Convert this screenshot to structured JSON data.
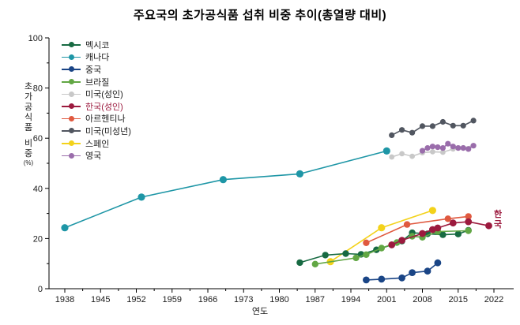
{
  "title": "주요국의 초가공식품 섭취 비중 추이(총열량 대비)",
  "annotation": {
    "text": "한\n국",
    "color": "#9c1a3e"
  },
  "chart_data": {
    "type": "line",
    "title": "주요국의 초가공식품 섭취 비중 추이(총열량 대비)",
    "xlabel": "연도",
    "ylabel": "초가공식품 비중",
    "ylabel_unit": "(%)",
    "xlim": [
      1934.5,
      2026
    ],
    "ylim": [
      0,
      100
    ],
    "x_ticks": [
      1938,
      1945,
      1952,
      1959,
      1966,
      1973,
      1980,
      1987,
      1994,
      2001,
      2008,
      2015,
      2022
    ],
    "y_ticks": [
      0,
      20,
      40,
      60,
      80,
      100
    ],
    "grid": false,
    "legend_position": "upper-left-inside",
    "series": [
      {
        "id": "mexico",
        "name": "멕시코",
        "color": "#176a42",
        "label_color": "#1a1a1a",
        "marker_radius": 4.2,
        "points": [
          [
            1984,
            10.4
          ],
          [
            1989,
            13.4
          ],
          [
            1993,
            14.0
          ],
          [
            1996,
            13.7
          ],
          [
            1999,
            15.5
          ],
          [
            2002,
            17.5
          ],
          [
            2004,
            19.0
          ],
          [
            2006,
            22.3
          ],
          [
            2009,
            21.9
          ],
          [
            2012,
            21.5
          ],
          [
            2015,
            21.8
          ],
          [
            2017,
            23.3
          ]
        ]
      },
      {
        "id": "canada",
        "name": "캐나다",
        "color": "#1e96a6",
        "label_color": "#1a1a1a",
        "marker_radius": 4.6,
        "points": [
          [
            1938,
            24.3
          ],
          [
            1953,
            36.5
          ],
          [
            1969,
            43.5
          ],
          [
            1984,
            45.8
          ],
          [
            2001,
            54.9
          ]
        ]
      },
      {
        "id": "china",
        "name": "중국",
        "color": "#1a4586",
        "label_color": "#1a1a1a",
        "marker_radius": 4.4,
        "points": [
          [
            1997,
            3.5
          ],
          [
            2000,
            3.8
          ],
          [
            2004,
            4.3
          ],
          [
            2006,
            6.4
          ],
          [
            2009,
            7.0
          ],
          [
            2011,
            10.3
          ]
        ]
      },
      {
        "id": "brazil",
        "name": "브라질",
        "color": "#62a744",
        "label_color": "#1a1a1a",
        "marker_radius": 4.2,
        "points": [
          [
            1987,
            9.8
          ],
          [
            1995,
            12.3
          ],
          [
            1997,
            13.6
          ],
          [
            2000,
            16.2
          ],
          [
            2003,
            18.4
          ],
          [
            2006,
            20.9
          ],
          [
            2008,
            20.5
          ],
          [
            2011,
            22.8
          ],
          [
            2017,
            23.1
          ]
        ]
      },
      {
        "id": "us-adult",
        "name": "미국(성인)",
        "color": "#c8c8c8",
        "label_color": "#1a1a1a",
        "marker_radius": 3.4,
        "points": [
          [
            2002,
            52.5
          ],
          [
            2004,
            53.8
          ],
          [
            2006,
            52.8
          ],
          [
            2008,
            54.2
          ],
          [
            2010,
            54.6
          ],
          [
            2012,
            54.4
          ],
          [
            2014,
            55.7
          ],
          [
            2016,
            56.2
          ],
          [
            2018,
            57.0
          ]
        ]
      },
      {
        "id": "korea",
        "name": "한국(성인)",
        "color": "#9c1a3e",
        "label_color": "#9c1a3e",
        "marker_radius": 4.4,
        "points": [
          [
            2002,
            17.5
          ],
          [
            2004,
            19.3
          ],
          [
            2008,
            22.0
          ],
          [
            2010,
            23.6
          ],
          [
            2011,
            24.2
          ],
          [
            2014,
            26.2
          ],
          [
            2017,
            26.7
          ],
          [
            2021,
            25.1
          ]
        ]
      },
      {
        "id": "argentina",
        "name": "아르헨티나",
        "color": "#e0593f",
        "label_color": "#1a1a1a",
        "marker_radius": 4.2,
        "points": [
          [
            1997,
            18.3
          ],
          [
            2005,
            25.6
          ],
          [
            2013,
            27.9
          ],
          [
            2017,
            28.8
          ]
        ]
      },
      {
        "id": "us-minor",
        "name": "미국(미성년)",
        "color": "#515660",
        "label_color": "#1a1a1a",
        "marker_radius": 3.6,
        "points": [
          [
            2002,
            61.2
          ],
          [
            2004,
            63.3
          ],
          [
            2006,
            62.2
          ],
          [
            2008,
            64.8
          ],
          [
            2010,
            64.8
          ],
          [
            2012,
            66.5
          ],
          [
            2014,
            65.0
          ],
          [
            2016,
            65.0
          ],
          [
            2018,
            67.0
          ]
        ]
      },
      {
        "id": "spain",
        "name": "스페인",
        "color": "#f3d21a",
        "label_color": "#1a1a1a",
        "marker_radius": 4.6,
        "points": [
          [
            1990,
            10.8
          ],
          [
            2000,
            24.3
          ],
          [
            2010,
            31.2
          ]
        ]
      },
      {
        "id": "uk",
        "name": "영국",
        "color": "#9a6dab",
        "label_color": "#1a1a1a",
        "marker_radius": 3.6,
        "points": [
          [
            2008,
            55.0
          ],
          [
            2009,
            56.1
          ],
          [
            2010,
            56.7
          ],
          [
            2011,
            56.4
          ],
          [
            2012,
            56.1
          ],
          [
            2013,
            57.8
          ],
          [
            2014,
            56.7
          ],
          [
            2015,
            56.1
          ],
          [
            2016,
            56.1
          ],
          [
            2017,
            55.7
          ],
          [
            2018,
            57.0
          ]
        ]
      }
    ]
  }
}
